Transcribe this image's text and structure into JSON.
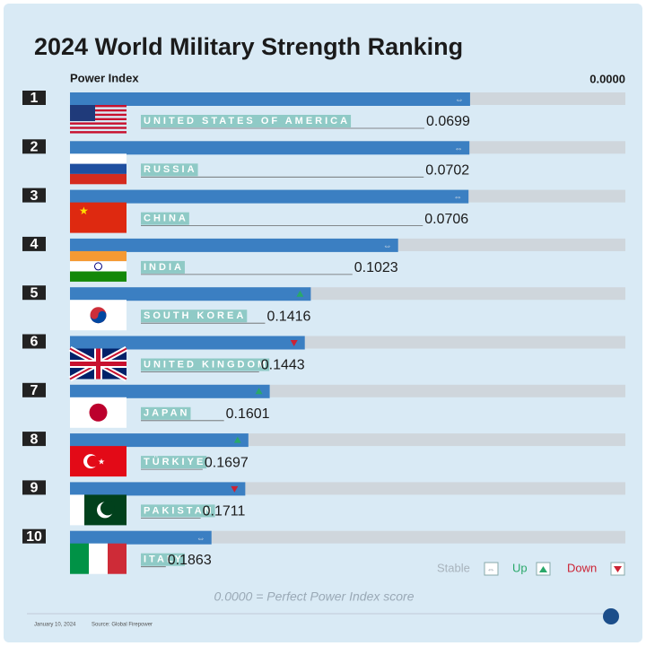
{
  "chart_data": {
    "type": "bar",
    "title": "2024 World Military Strength Ranking",
    "x_label": "Power Index",
    "ranks": [
      "1",
      "2",
      "3",
      "4",
      "5",
      "6",
      "7",
      "8",
      "9",
      "10"
    ],
    "categories": [
      "UNITED STATES OF AMERICA",
      "RUSSIA",
      "CHINA",
      "INDIA",
      "SOUTH KOREA",
      "UNITED KINGDOM",
      "JAPAN",
      "TÜRKIYE",
      "PAKISTAN",
      "ITALY"
    ],
    "values": [
      0.0699,
      0.0702,
      0.0706,
      0.1023,
      0.1416,
      0.1443,
      0.1601,
      0.1697,
      0.1711,
      0.1863
    ],
    "trend": [
      "stable",
      "stable",
      "stable",
      "stable",
      "up",
      "down",
      "up",
      "up",
      "down",
      "stable"
    ],
    "color": "#3b7fc2",
    "xlim": [
      0.25,
      0
    ],
    "xticks": [
      {
        "value": 0,
        "label": "0.0000"
      }
    ],
    "legend": {
      "stable": "Stable",
      "up": "Up",
      "down": "Down"
    },
    "footnote": "0.0000 = Perfect Power Index score",
    "date": "January 10, 2024",
    "source": "Source: Global Firepower"
  }
}
